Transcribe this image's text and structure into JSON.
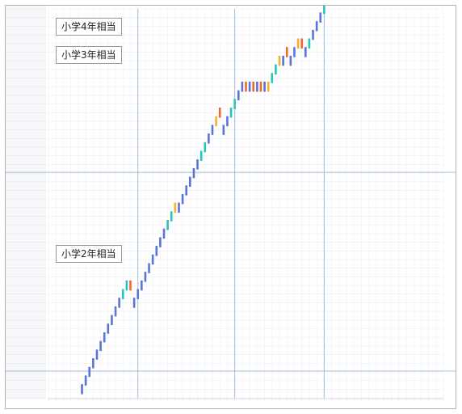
{
  "chart_data": {
    "type": "scatter",
    "grade_labels": [
      {
        "text": "小学4年相当"
      },
      {
        "text": "小学3年相当"
      },
      {
        "text": "小学2年相当"
      }
    ],
    "status_colors": {
      "base": "#5b74d6",
      "review": "#28c4b6",
      "caution": "#f2b22e",
      "alert": "#ee6a2a"
    },
    "row_labels": [],
    "x_ticks": [],
    "grid": true,
    "row_count": 45,
    "column_count": 106,
    "unit_boundaries_x": [
      24,
      50,
      74
    ],
    "grade_boundary_rows": [
      3,
      26
    ],
    "legend": "none",
    "points": [
      {
        "x": 9,
        "y": 1,
        "status": "base"
      },
      {
        "x": 10,
        "y": 2,
        "status": "base"
      },
      {
        "x": 11,
        "y": 3,
        "status": "base"
      },
      {
        "x": 12,
        "y": 4,
        "status": "base"
      },
      {
        "x": 13,
        "y": 5,
        "status": "base"
      },
      {
        "x": 14,
        "y": 6,
        "status": "base"
      },
      {
        "x": 15,
        "y": 7,
        "status": "base"
      },
      {
        "x": 16,
        "y": 8,
        "status": "base"
      },
      {
        "x": 17,
        "y": 9,
        "status": "base"
      },
      {
        "x": 18,
        "y": 10,
        "status": "base"
      },
      {
        "x": 19,
        "y": 11,
        "status": "base"
      },
      {
        "x": 20,
        "y": 12,
        "status": "review"
      },
      {
        "x": 21,
        "y": 13,
        "status": "review"
      },
      {
        "x": 22,
        "y": 13,
        "status": "alert"
      },
      {
        "x": 23,
        "y": 11,
        "status": "base"
      },
      {
        "x": 24,
        "y": 12,
        "status": "base"
      },
      {
        "x": 25,
        "y": 13,
        "status": "base"
      },
      {
        "x": 26,
        "y": 14,
        "status": "base"
      },
      {
        "x": 27,
        "y": 15,
        "status": "base"
      },
      {
        "x": 28,
        "y": 16,
        "status": "base"
      },
      {
        "x": 29,
        "y": 17,
        "status": "base"
      },
      {
        "x": 30,
        "y": 18,
        "status": "base"
      },
      {
        "x": 31,
        "y": 19,
        "status": "base"
      },
      {
        "x": 32,
        "y": 20,
        "status": "review"
      },
      {
        "x": 33,
        "y": 21,
        "status": "review"
      },
      {
        "x": 34,
        "y": 22,
        "status": "caution"
      },
      {
        "x": 35,
        "y": 22,
        "status": "base"
      },
      {
        "x": 36,
        "y": 23,
        "status": "base"
      },
      {
        "x": 37,
        "y": 24,
        "status": "base"
      },
      {
        "x": 38,
        "y": 25,
        "status": "base"
      },
      {
        "x": 39,
        "y": 26,
        "status": "base"
      },
      {
        "x": 40,
        "y": 27,
        "status": "base"
      },
      {
        "x": 41,
        "y": 28,
        "status": "review"
      },
      {
        "x": 42,
        "y": 29,
        "status": "review"
      },
      {
        "x": 43,
        "y": 30,
        "status": "base"
      },
      {
        "x": 44,
        "y": 31,
        "status": "base"
      },
      {
        "x": 45,
        "y": 32,
        "status": "caution"
      },
      {
        "x": 46,
        "y": 33,
        "status": "alert"
      },
      {
        "x": 47,
        "y": 31,
        "status": "base"
      },
      {
        "x": 48,
        "y": 32,
        "status": "base"
      },
      {
        "x": 49,
        "y": 33,
        "status": "review"
      },
      {
        "x": 50,
        "y": 34,
        "status": "review"
      },
      {
        "x": 51,
        "y": 35,
        "status": "base"
      },
      {
        "x": 52,
        "y": 36,
        "status": "base"
      },
      {
        "x": 53,
        "y": 36,
        "status": "alert"
      },
      {
        "x": 54,
        "y": 36,
        "status": "base"
      },
      {
        "x": 55,
        "y": 36,
        "status": "alert"
      },
      {
        "x": 56,
        "y": 36,
        "status": "base"
      },
      {
        "x": 57,
        "y": 36,
        "status": "alert"
      },
      {
        "x": 58,
        "y": 36,
        "status": "base"
      },
      {
        "x": 59,
        "y": 36,
        "status": "caution"
      },
      {
        "x": 60,
        "y": 37,
        "status": "review"
      },
      {
        "x": 61,
        "y": 38,
        "status": "review"
      },
      {
        "x": 62,
        "y": 39,
        "status": "caution"
      },
      {
        "x": 63,
        "y": 39,
        "status": "base"
      },
      {
        "x": 64,
        "y": 40,
        "status": "alert"
      },
      {
        "x": 65,
        "y": 39,
        "status": "base"
      },
      {
        "x": 66,
        "y": 40,
        "status": "base"
      },
      {
        "x": 67,
        "y": 41,
        "status": "caution"
      },
      {
        "x": 68,
        "y": 41,
        "status": "alert"
      },
      {
        "x": 69,
        "y": 40,
        "status": "base"
      },
      {
        "x": 70,
        "y": 41,
        "status": "review"
      },
      {
        "x": 71,
        "y": 42,
        "status": "base"
      },
      {
        "x": 72,
        "y": 43,
        "status": "base"
      },
      {
        "x": 73,
        "y": 44,
        "status": "base"
      },
      {
        "x": 74,
        "y": 45,
        "status": "review"
      },
      {
        "x": 75,
        "y": 46,
        "status": "review"
      },
      {
        "x": 76,
        "y": 47,
        "status": "review"
      },
      {
        "x": 77,
        "y": 47,
        "status": "alert"
      },
      {
        "x": 78,
        "y": 46,
        "status": "base"
      },
      {
        "x": 79,
        "y": 47,
        "status": "review"
      },
      {
        "x": 80,
        "y": 48,
        "status": "review"
      },
      {
        "x": 81,
        "y": 48,
        "status": "review"
      },
      {
        "x": 82,
        "y": 49,
        "status": "review"
      },
      {
        "x": 83,
        "y": 49,
        "status": "review"
      }
    ]
  }
}
